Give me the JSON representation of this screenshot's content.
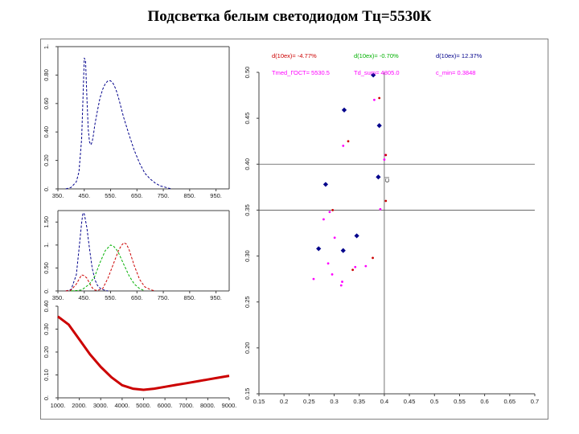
{
  "title": "Подсветка белым  светодиодом Тц=5530К",
  "chart_data": [
    {
      "id": "spectrum",
      "type": "line",
      "xlim": [
        350,
        1000
      ],
      "ylim": [
        0,
        1
      ],
      "x_ticks": [
        "350.",
        "450.",
        "550.",
        "650.",
        "750.",
        "850.",
        "950."
      ],
      "y_ticks": [
        "0.",
        "0.20",
        "0.40",
        "0.60",
        "0.80",
        "1."
      ],
      "series": [
        {
          "color": "#00008b",
          "x": [
            380,
            400,
            420,
            430,
            440,
            445,
            450,
            455,
            460,
            465,
            470,
            475,
            480,
            485,
            490,
            500,
            510,
            520,
            530,
            540,
            550,
            560,
            570,
            580,
            590,
            600,
            620,
            640,
            660,
            680,
            700,
            720,
            740,
            760,
            780
          ],
          "y": [
            0.0,
            0.01,
            0.05,
            0.12,
            0.35,
            0.62,
            0.92,
            0.9,
            0.65,
            0.42,
            0.33,
            0.31,
            0.33,
            0.38,
            0.45,
            0.55,
            0.64,
            0.7,
            0.74,
            0.76,
            0.76,
            0.74,
            0.7,
            0.64,
            0.57,
            0.5,
            0.38,
            0.27,
            0.18,
            0.11,
            0.07,
            0.04,
            0.02,
            0.01,
            0.0
          ]
        }
      ]
    },
    {
      "id": "cmf",
      "type": "line",
      "xlim": [
        350,
        1000
      ],
      "ylim": [
        0,
        1.75
      ],
      "x_ticks": [
        "350.",
        "450.",
        "550.",
        "650.",
        "750.",
        "850.",
        "950."
      ],
      "y_ticks": [
        "0.",
        "0.50",
        "1.",
        "1.50"
      ],
      "series": [
        {
          "color": "#00008b",
          "x": [
            380,
            400,
            420,
            430,
            440,
            445,
            450,
            460,
            470,
            480,
            490,
            500,
            510,
            520,
            530,
            540
          ],
          "y": [
            0.0,
            0.03,
            0.35,
            0.9,
            1.48,
            1.7,
            1.68,
            1.38,
            0.92,
            0.5,
            0.25,
            0.12,
            0.06,
            0.03,
            0.01,
            0.0
          ]
        },
        {
          "color": "#cc0000",
          "x": [
            380,
            400,
            420,
            440,
            450,
            460,
            470,
            480,
            490,
            500,
            520,
            540,
            560,
            580,
            590,
            600,
            610,
            620,
            640,
            660,
            680,
            700,
            720
          ],
          "y": [
            0.0,
            0.02,
            0.15,
            0.35,
            0.33,
            0.28,
            0.17,
            0.07,
            0.02,
            0.01,
            0.05,
            0.28,
            0.58,
            0.88,
            0.98,
            1.05,
            1.02,
            0.9,
            0.55,
            0.25,
            0.09,
            0.03,
            0.0
          ]
        },
        {
          "color": "#00b000",
          "x": [
            400,
            440,
            470,
            490,
            510,
            530,
            550,
            560,
            570,
            580,
            600,
            620,
            640,
            660,
            680
          ],
          "y": [
            0.0,
            0.02,
            0.15,
            0.32,
            0.62,
            0.88,
            1.0,
            0.98,
            0.92,
            0.83,
            0.58,
            0.33,
            0.15,
            0.05,
            0.0
          ]
        }
      ]
    },
    {
      "id": "locus",
      "type": "line",
      "xlim": [
        1000,
        9000
      ],
      "ylim": [
        0,
        0.4
      ],
      "x_ticks": [
        "1000.",
        "2000.",
        "3000.",
        "4000.",
        "5000.",
        "6000.",
        "7000.",
        "8000.",
        "9000."
      ],
      "y_ticks": [
        "0.",
        "0.10",
        "0.20",
        "0.30",
        "0.40"
      ],
      "series": [
        {
          "color": "#cc0000",
          "x": [
            1000,
            1500,
            2000,
            2500,
            3000,
            3500,
            4000,
            4500,
            5000,
            5500,
            6000,
            6500,
            7000,
            7500,
            8000,
            8500,
            9000
          ],
          "y": [
            0.355,
            0.32,
            0.255,
            0.19,
            0.135,
            0.09,
            0.055,
            0.04,
            0.035,
            0.04,
            0.048,
            0.056,
            0.064,
            0.072,
            0.08,
            0.088,
            0.096
          ]
        }
      ]
    },
    {
      "id": "chromaticity",
      "type": "scatter",
      "xlim": [
        0.15,
        0.7
      ],
      "ylim": [
        0.15,
        0.5
      ],
      "x_ticks": [
        "0.15",
        "0.2",
        "0.25",
        "0.3",
        "0.35",
        "0.4",
        "0.45",
        "0.5",
        "0.55",
        "0.6",
        "0.65",
        "0.7"
      ],
      "y_ticks": [
        "0.15",
        "0.20",
        "0.25",
        "0.30",
        "0.35",
        "0.40",
        "0.45",
        "0.50"
      ],
      "grid_x": [
        0.4
      ],
      "grid_y": [
        0.4,
        0.35
      ],
      "center_label": "Cl",
      "center_label_at": [
        0.41,
        0.38
      ],
      "annotations": [
        {
          "text": "d(10ex)=  -4.77%",
          "color": "#cc0000"
        },
        {
          "text": "d(10ex)=  -0.70%",
          "color": "#00b000"
        },
        {
          "text": "d(10ex)=  12.37%",
          "color": "#00008b"
        },
        {
          "text": "Tmed_ГОСТ= 5530.5",
          "color": "#ff00ff"
        },
        {
          "text": "Td_sum=  4805.0",
          "color": "#ff00ff"
        },
        {
          "text": "c_min= 0.3848",
          "color": "#ff00ff"
        }
      ],
      "series": [
        {
          "color": "#00008b",
          "marker": "diamond",
          "x": [
            0.378,
            0.32,
            0.39,
            0.283,
            0.388,
            0.345,
            0.269,
            0.318
          ],
          "y": [
            0.497,
            0.459,
            0.442,
            0.378,
            0.386,
            0.322,
            0.308,
            0.306
          ]
        },
        {
          "color": "#ff00ff",
          "marker": "dot",
          "x": [
            0.318,
            0.279,
            0.291,
            0.301,
            0.316,
            0.288,
            0.296,
            0.259,
            0.314,
            0.342,
            0.38,
            0.4,
            0.363,
            0.402,
            0.392
          ],
          "y": [
            0.42,
            0.34,
            0.348,
            0.32,
            0.272,
            0.292,
            0.28,
            0.275,
            0.268,
            0.288,
            0.47,
            0.405,
            0.289,
            0.41,
            0.351
          ]
        },
        {
          "color": "#cc0000",
          "marker": "dot",
          "x": [
            0.328,
            0.39,
            0.403,
            0.403,
            0.377,
            0.337,
            0.297
          ],
          "y": [
            0.425,
            0.472,
            0.41,
            0.36,
            0.298,
            0.285,
            0.35
          ]
        }
      ]
    }
  ]
}
